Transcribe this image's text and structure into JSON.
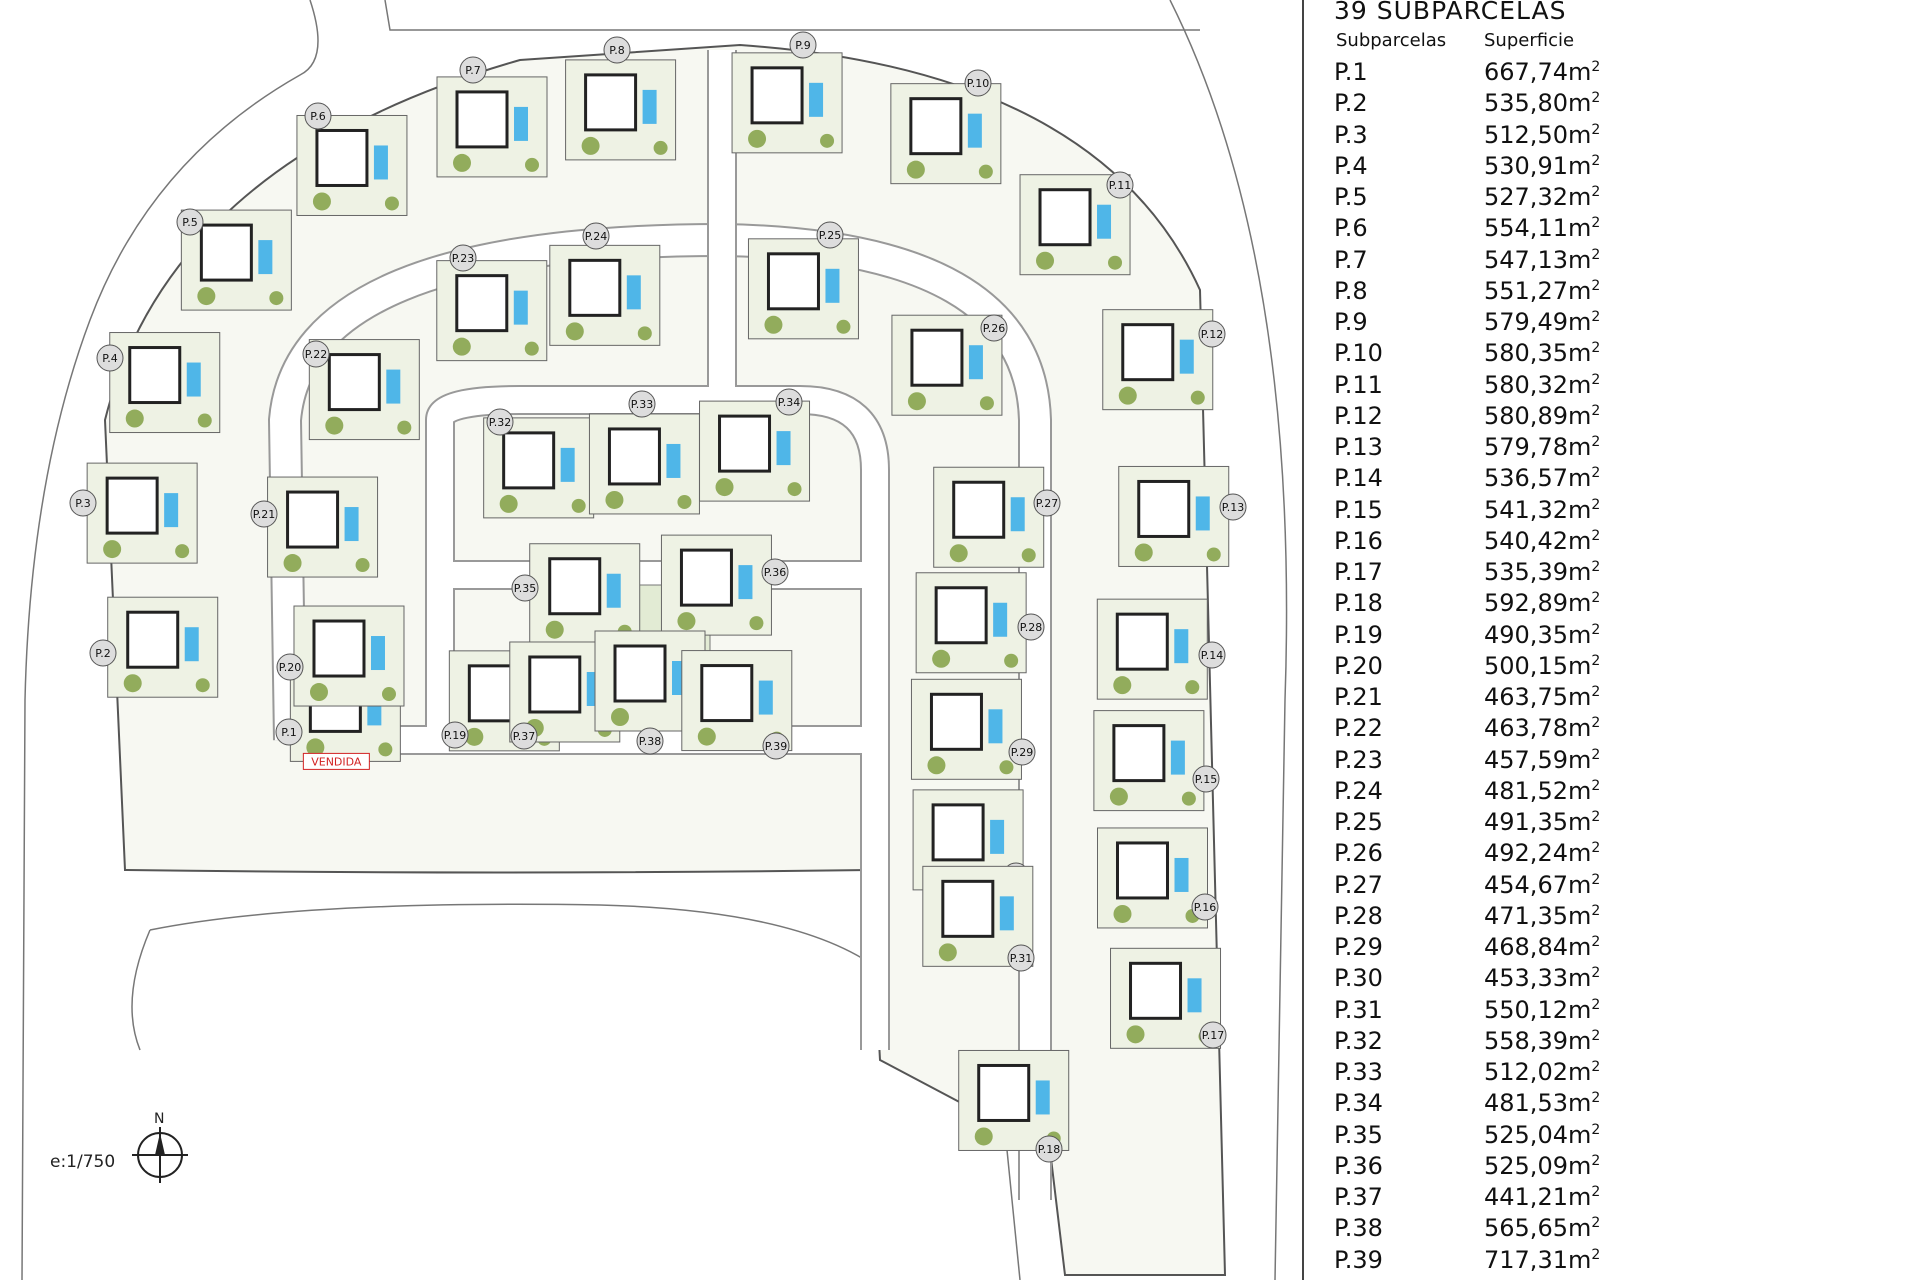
{
  "table": {
    "title": "39 SUBPARCELAS",
    "col_headers": [
      "Subparcelas",
      "Superficie"
    ],
    "unit": "m",
    "unit_exp": "2",
    "rows": [
      {
        "id": "P.1",
        "area": "667,74"
      },
      {
        "id": "P.2",
        "area": "535,80"
      },
      {
        "id": "P.3",
        "area": "512,50"
      },
      {
        "id": "P.4",
        "area": "530,91"
      },
      {
        "id": "P.5",
        "area": "527,32"
      },
      {
        "id": "P.6",
        "area": "554,11"
      },
      {
        "id": "P.7",
        "area": "547,13"
      },
      {
        "id": "P.8",
        "area": "551,27"
      },
      {
        "id": "P.9",
        "area": "579,49"
      },
      {
        "id": "P.10",
        "area": "580,35"
      },
      {
        "id": "P.11",
        "area": "580,32"
      },
      {
        "id": "P.12",
        "area": "580,89"
      },
      {
        "id": "P.13",
        "area": "579,78"
      },
      {
        "id": "P.14",
        "area": "536,57"
      },
      {
        "id": "P.15",
        "area": "541,32"
      },
      {
        "id": "P.16",
        "area": "540,42"
      },
      {
        "id": "P.17",
        "area": "535,39"
      },
      {
        "id": "P.18",
        "area": "592,89"
      },
      {
        "id": "P.19",
        "area": "490,35"
      },
      {
        "id": "P.20",
        "area": "500,15"
      },
      {
        "id": "P.21",
        "area": "463,75"
      },
      {
        "id": "P.22",
        "area": "463,78"
      },
      {
        "id": "P.23",
        "area": "457,59"
      },
      {
        "id": "P.24",
        "area": "481,52"
      },
      {
        "id": "P.25",
        "area": "491,35"
      },
      {
        "id": "P.26",
        "area": "492,24"
      },
      {
        "id": "P.27",
        "area": "454,67"
      },
      {
        "id": "P.28",
        "area": "471,35"
      },
      {
        "id": "P.29",
        "area": "468,84"
      },
      {
        "id": "P.30",
        "area": "453,33"
      },
      {
        "id": "P.31",
        "area": "550,12"
      },
      {
        "id": "P.32",
        "area": "558,39"
      },
      {
        "id": "P.33",
        "area": "512,02"
      },
      {
        "id": "P.34",
        "area": "481,53"
      },
      {
        "id": "P.35",
        "area": "525,04"
      },
      {
        "id": "P.36",
        "area": "525,09"
      },
      {
        "id": "P.37",
        "area": "441,21"
      },
      {
        "id": "P.38",
        "area": "565,65"
      },
      {
        "id": "P.39",
        "area": "717,31"
      }
    ]
  },
  "map": {
    "sold_label": "VENDIDA",
    "sold_plot": "P.1",
    "scale": "e:1/750",
    "north": "N",
    "colors": {
      "vegetation": "#7a9a3a",
      "pool": "#4fb6e8",
      "parcel": "#eef2e4",
      "sold": "#d22222"
    }
  }
}
